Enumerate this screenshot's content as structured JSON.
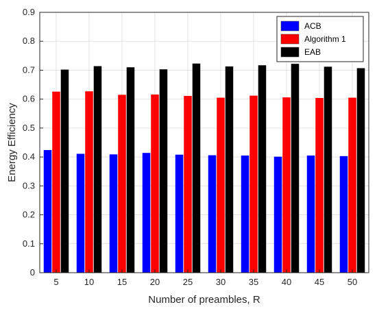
{
  "chart_data": {
    "type": "bar",
    "title": "",
    "xlabel": "Number of preambles, R",
    "ylabel": "Energy Efficiency",
    "ylim": [
      0,
      0.9
    ],
    "yticks": [
      "0",
      "0.1",
      "0.2",
      "0.3",
      "0.4",
      "0.5",
      "0.6",
      "0.7",
      "0.8",
      "0.9"
    ],
    "categories": [
      "5",
      "10",
      "15",
      "20",
      "25",
      "30",
      "35",
      "40",
      "45",
      "50"
    ],
    "grid": true,
    "legend_position": "top-right",
    "series": [
      {
        "name": "ACB",
        "color": "#0000ff",
        "values": [
          0.424,
          0.411,
          0.409,
          0.414,
          0.408,
          0.406,
          0.405,
          0.401,
          0.405,
          0.403
        ]
      },
      {
        "name": "Algorithm 1",
        "color": "#ff0000",
        "values": [
          0.626,
          0.627,
          0.615,
          0.616,
          0.611,
          0.605,
          0.612,
          0.606,
          0.604,
          0.605
        ]
      },
      {
        "name": "EAB",
        "color": "#000000",
        "values": [
          0.702,
          0.714,
          0.71,
          0.703,
          0.723,
          0.713,
          0.717,
          0.722,
          0.712,
          0.707
        ]
      }
    ]
  }
}
